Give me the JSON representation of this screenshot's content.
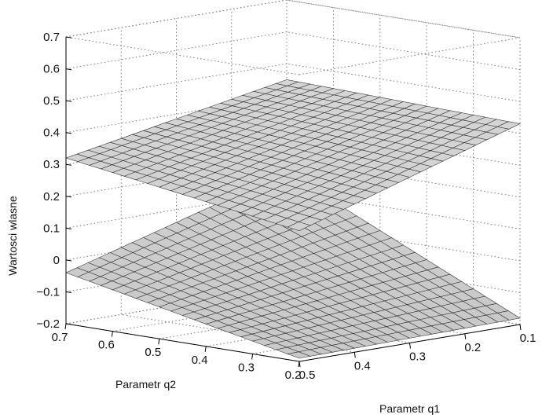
{
  "chart_data": {
    "type": "surface",
    "title": "",
    "xlabel": "Parametr q1",
    "ylabel": "Parametr q2",
    "zlabel": "Wartosci wlasne",
    "xlim": [
      0.1,
      0.5
    ],
    "ylim": [
      0.2,
      0.7
    ],
    "zlim": [
      -0.2,
      0.7
    ],
    "x_ticks": [
      "0.1",
      "0.2",
      "0.3",
      "0.4",
      "0.5"
    ],
    "y_ticks": [
      "0.2",
      "0.3",
      "0.4",
      "0.5",
      "0.6",
      "0.7"
    ],
    "z_ticks": [
      "−0.2",
      "−0.1",
      "0",
      "0.1",
      "0.2",
      "0.3",
      "0.4",
      "0.5",
      "0.6",
      "0.7"
    ],
    "grid": true,
    "surface_color": "#c8c8c8",
    "edge_color": "#2b2b2b",
    "series": [
      {
        "corner_values": [
          {
            "q1": 0.5,
            "q2": 0.7,
            "z": 0.32
          },
          {
            "q1": 0.5,
            "q2": 0.2,
            "z": 0.21
          },
          {
            "q1": 0.1,
            "q2": 0.2,
            "z": 0.43
          },
          {
            "q1": 0.1,
            "q2": 0.7,
            "z": 0.45
          }
        ]
      },
      {
        "corner_values": [
          {
            "q1": 0.5,
            "q2": 0.7,
            "z": -0.04
          },
          {
            "q1": 0.5,
            "q2": 0.2,
            "z": -0.19
          },
          {
            "q1": 0.1,
            "q2": 0.2,
            "z": -0.18
          },
          {
            "q1": 0.1,
            "q2": 0.7,
            "z": 0.16
          }
        ]
      }
    ]
  }
}
